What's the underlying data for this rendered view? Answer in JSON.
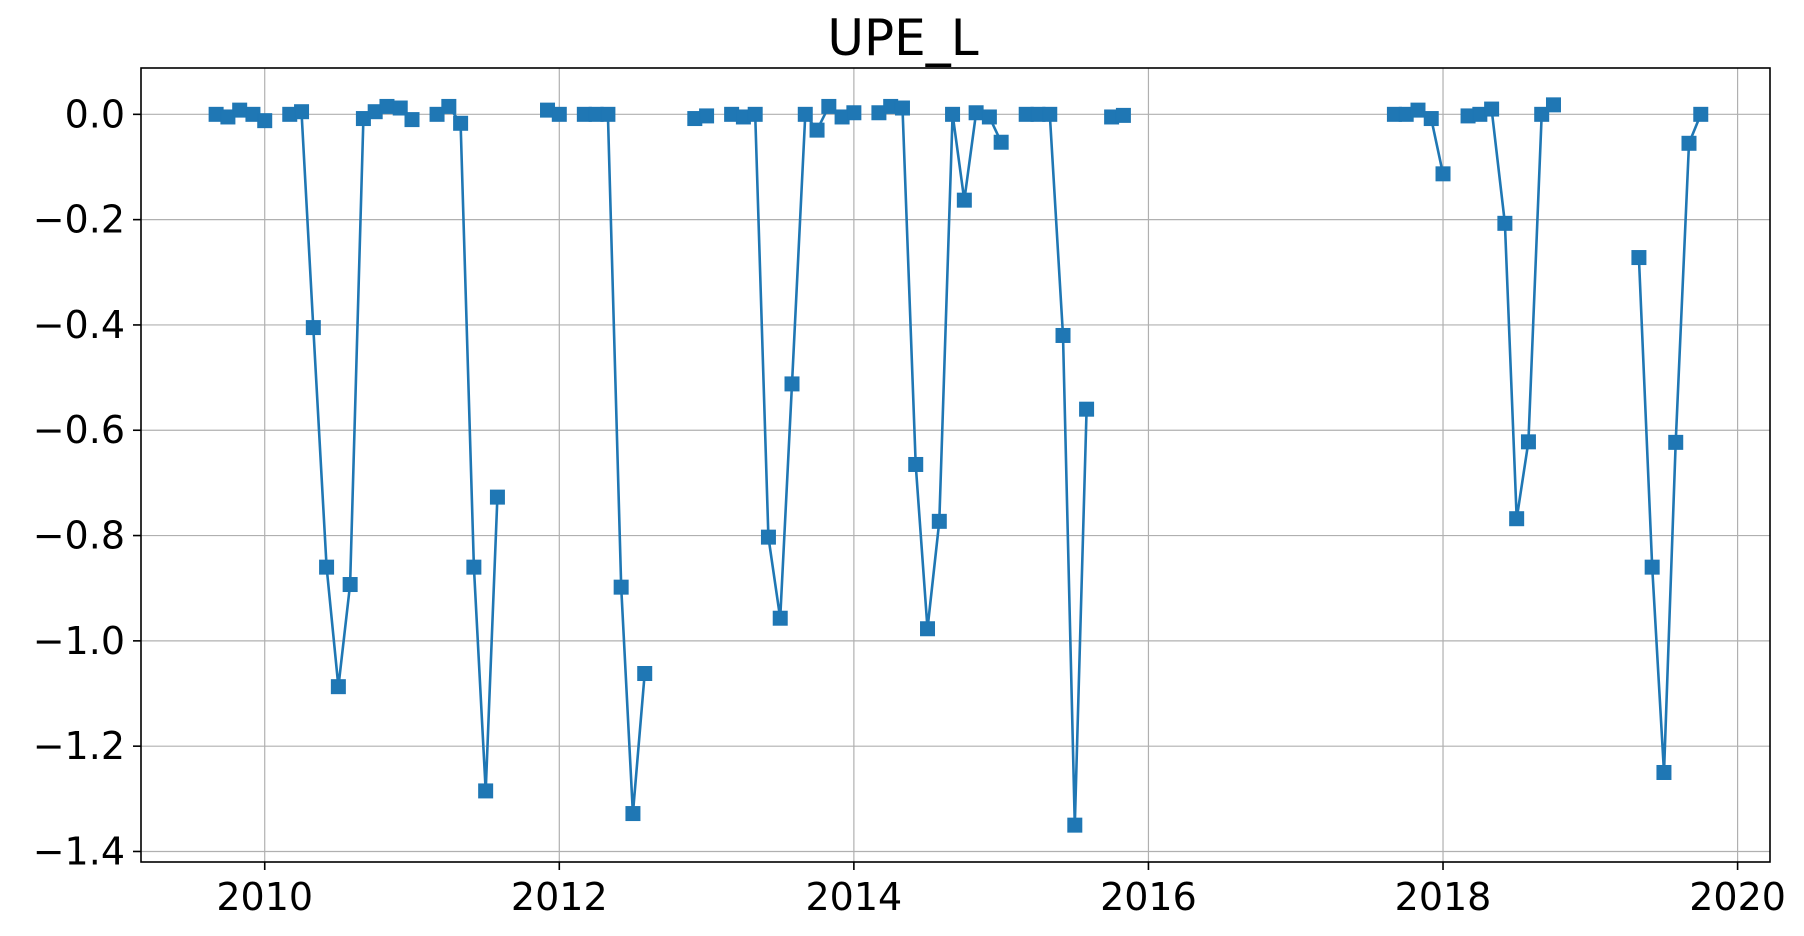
{
  "chart_data": {
    "type": "line",
    "title": "UPE_L",
    "xlabel": "",
    "ylabel": "",
    "x_axis": "date (decimal year)",
    "xlim": [
      2009.16,
      2020.22
    ],
    "ylim": [
      -1.42,
      0.088
    ],
    "xticks": [
      2010,
      2012,
      2014,
      2016,
      2018,
      2020
    ],
    "xtick_labels": [
      "2010",
      "2012",
      "2014",
      "2016",
      "2018",
      "2020"
    ],
    "yticks": [
      0.0,
      -0.2,
      -0.4,
      -0.6,
      -0.8,
      -1.0,
      -1.2,
      -1.4
    ],
    "ytick_labels": [
      "0.0",
      "−0.2",
      "−0.4",
      "−0.6",
      "−0.8",
      "−1.0",
      "−1.2",
      "−1.4"
    ],
    "grid": true,
    "marker": "square",
    "colors": {
      "series": "#1f77b4"
    },
    "series": [
      {
        "segments": [
          [
            [
              2009.67,
              0.0
            ],
            [
              2009.75,
              -0.005
            ],
            [
              2009.83,
              0.008
            ],
            [
              2009.92,
              0.0
            ],
            [
              2010.0,
              -0.012
            ]
          ],
          [
            [
              2010.17,
              0.0
            ],
            [
              2010.25,
              0.005
            ],
            [
              2010.33,
              -0.405
            ],
            [
              2010.42,
              -0.86
            ],
            [
              2010.5,
              -1.087
            ],
            [
              2010.58,
              -0.893
            ],
            [
              2010.67,
              -0.008
            ],
            [
              2010.75,
              0.005
            ],
            [
              2010.83,
              0.015
            ],
            [
              2010.92,
              0.012
            ],
            [
              2011.0,
              -0.01
            ]
          ],
          [
            [
              2011.17,
              0.0
            ],
            [
              2011.25,
              0.015
            ],
            [
              2011.33,
              -0.017
            ],
            [
              2011.42,
              -0.86
            ],
            [
              2011.5,
              -1.285
            ],
            [
              2011.58,
              -0.727
            ]
          ],
          [
            [
              2011.92,
              0.008
            ],
            [
              2012.0,
              0.0
            ]
          ],
          [
            [
              2012.17,
              0.0
            ],
            [
              2012.25,
              0.0
            ],
            [
              2012.33,
              0.0
            ],
            [
              2012.42,
              -0.898
            ],
            [
              2012.5,
              -1.328
            ],
            [
              2012.58,
              -1.062
            ]
          ],
          [
            [
              2012.92,
              -0.008
            ],
            [
              2013.0,
              -0.003
            ]
          ],
          [
            [
              2013.17,
              0.0
            ],
            [
              2013.25,
              -0.005
            ],
            [
              2013.33,
              0.0
            ],
            [
              2013.42,
              -0.803
            ],
            [
              2013.5,
              -0.957
            ],
            [
              2013.58,
              -0.512
            ],
            [
              2013.67,
              0.0
            ],
            [
              2013.75,
              -0.03
            ],
            [
              2013.83,
              0.015
            ],
            [
              2013.92,
              -0.005
            ],
            [
              2014.0,
              0.003
            ]
          ],
          [
            [
              2014.17,
              0.003
            ],
            [
              2014.25,
              0.015
            ],
            [
              2014.33,
              0.012
            ],
            [
              2014.42,
              -0.665
            ],
            [
              2014.5,
              -0.977
            ],
            [
              2014.58,
              -0.773
            ],
            [
              2014.67,
              0.0
            ],
            [
              2014.75,
              -0.163
            ],
            [
              2014.83,
              0.003
            ],
            [
              2014.92,
              -0.005
            ],
            [
              2015.0,
              -0.053
            ]
          ],
          [
            [
              2015.17,
              0.0
            ],
            [
              2015.25,
              0.0
            ],
            [
              2015.33,
              0.0
            ],
            [
              2015.42,
              -0.42
            ],
            [
              2015.5,
              -1.35
            ],
            [
              2015.58,
              -0.56
            ]
          ],
          [
            [
              2015.75,
              -0.005
            ],
            [
              2015.83,
              -0.002
            ]
          ],
          [
            [
              2017.67,
              0.0
            ],
            [
              2017.75,
              0.0
            ],
            [
              2017.83,
              0.008
            ],
            [
              2017.92,
              -0.008
            ],
            [
              2018.0,
              -0.113
            ]
          ],
          [
            [
              2018.17,
              -0.003
            ],
            [
              2018.25,
              0.0
            ],
            [
              2018.33,
              0.01
            ],
            [
              2018.42,
              -0.207
            ],
            [
              2018.5,
              -0.768
            ],
            [
              2018.58,
              -0.622
            ],
            [
              2018.67,
              0.0
            ],
            [
              2018.75,
              0.018
            ]
          ],
          [
            [
              2019.33,
              -0.272
            ],
            [
              2019.42,
              -0.86
            ],
            [
              2019.5,
              -1.25
            ],
            [
              2019.58,
              -0.623
            ],
            [
              2019.67,
              -0.055
            ],
            [
              2019.75,
              0.0
            ]
          ]
        ]
      }
    ]
  }
}
